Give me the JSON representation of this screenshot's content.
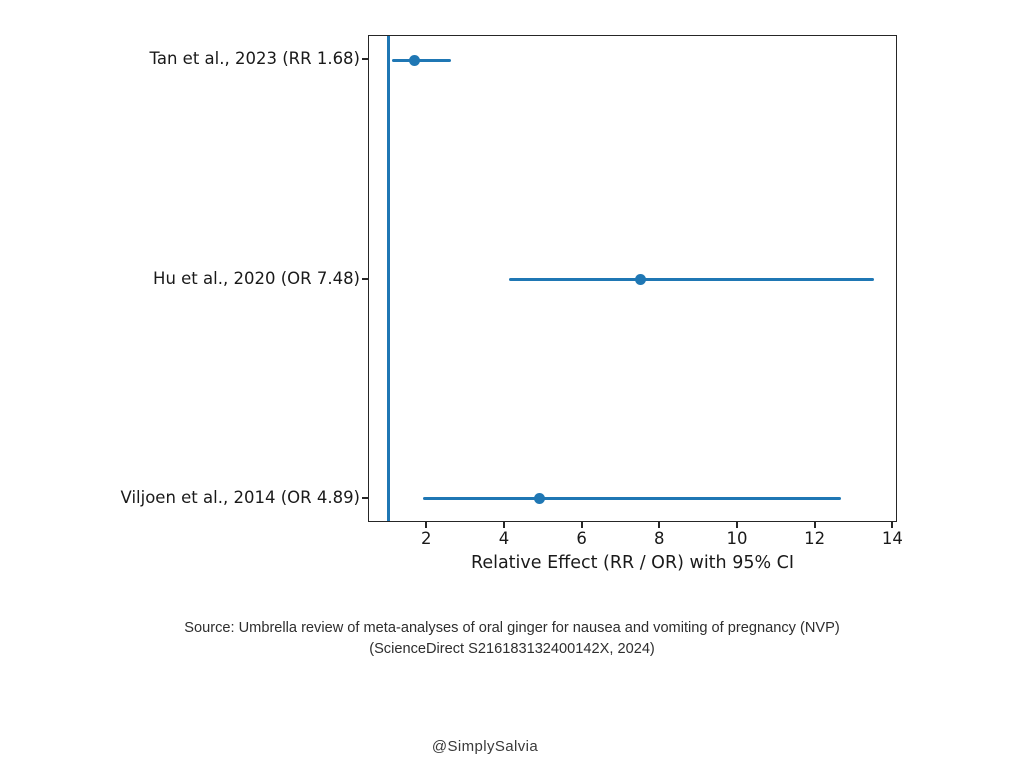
{
  "chart_data": {
    "type": "scatter",
    "subtype": "forest-plot-with-error-bars",
    "title": "",
    "xlabel": "Relative Effect (RR / OR) with 95% CI",
    "ylabel": "",
    "xlim": [
      0.5,
      14.12
    ],
    "xticks": [
      2,
      4,
      6,
      8,
      10,
      12,
      14
    ],
    "reference_line_x": 1.0,
    "grid": false,
    "legend": "none",
    "accent_color": "#1f77b4",
    "spine_color": "#262626",
    "text_color": "#1a1a1a",
    "studies": [
      {
        "label": "Tan et al., 2023 (RR 1.68)",
        "estimate": 1.68,
        "ci_low": 1.1,
        "ci_high": 2.6
      },
      {
        "label": "Hu et al., 2020 (OR 7.48)",
        "estimate": 7.48,
        "ci_low": 4.1,
        "ci_high": 13.5
      },
      {
        "label": "Viljoen et al., 2014 (OR 4.89)",
        "estimate": 4.89,
        "ci_low": 1.9,
        "ci_high": 12.65
      }
    ]
  },
  "caption": {
    "line1": "Source: Umbrella review of meta-analyses of oral ginger for nausea and vomiting of pregnancy (NVP)",
    "line2": "(ScienceDirect S216183132400142X, 2024)"
  },
  "footer": {
    "handle": "@SimplySalvia"
  }
}
